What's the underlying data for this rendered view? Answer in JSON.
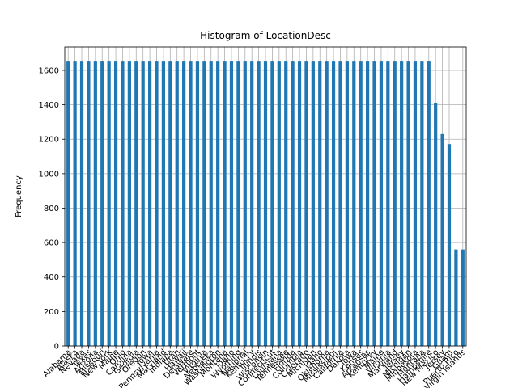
{
  "chart_data": {
    "type": "bar",
    "title": "Histogram of LocationDesc",
    "xlabel": "",
    "ylabel": "Frequency",
    "ylim": [
      0,
      1736
    ],
    "yticks": [
      0,
      200,
      400,
      600,
      800,
      1000,
      1200,
      1400,
      1600
    ],
    "grid": true,
    "bar_color": "#1f77b4",
    "categories": [
      "Alabama",
      "Alaska",
      "Nevada",
      "Texas",
      "Arizona",
      "Missouri",
      "New York",
      "Maine",
      "Ohio",
      "Carolina",
      "Georgia",
      "Oregon",
      "Iowa",
      "Pennsylvania",
      "Maryland",
      "Indiana",
      "Utah",
      "Hawaii",
      "Delaware",
      "Vermont",
      "Virginia",
      "Nebraska",
      "Washington",
      "Montana",
      "Idaho",
      "Wyoming",
      "National",
      "Kentucky",
      "Illinois",
      "Wisconsin",
      "Connecticut",
      "Louisiana",
      "Tennessee",
      "Florida",
      "Columbia",
      "Colorado",
      "Michigan",
      "Idaho",
      "Oklahoma",
      "Mississippi",
      "California",
      "Dakota",
      "Iowa",
      "Kansas",
      "Arkansas",
      "Kentucky",
      "Maine",
      "Virginia",
      "Maryland",
      "Jersey",
      "Michigan",
      "Minnesota",
      "Montana",
      "Hampshire",
      "New Mexico",
      "Jersey",
      "Guam",
      "Puerto Rico",
      "Virgin Islands"
    ],
    "values": [
      1651,
      1651,
      1651,
      1651,
      1651,
      1651,
      1651,
      1651,
      1651,
      1651,
      1651,
      1651,
      1651,
      1651,
      1651,
      1651,
      1651,
      1651,
      1651,
      1651,
      1651,
      1651,
      1651,
      1651,
      1651,
      1651,
      1651,
      1651,
      1651,
      1651,
      1651,
      1651,
      1651,
      1651,
      1651,
      1651,
      1651,
      1651,
      1651,
      1651,
      1651,
      1651,
      1651,
      1651,
      1651,
      1651,
      1651,
      1651,
      1651,
      1651,
      1651,
      1651,
      1651,
      1651,
      1408,
      1230,
      1172,
      560,
      560
    ]
  }
}
